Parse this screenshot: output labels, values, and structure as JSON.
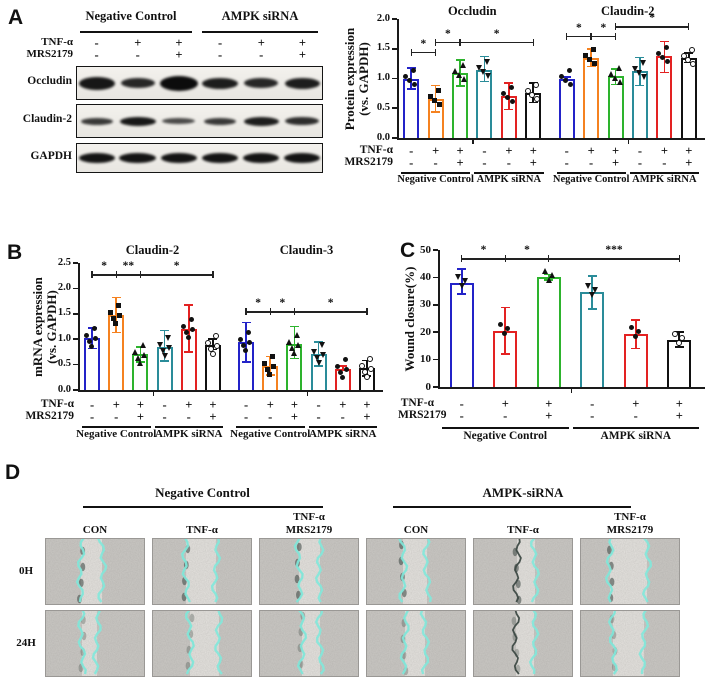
{
  "panel_labels": {
    "A": "A",
    "B": "B",
    "C": "C",
    "D": "D"
  },
  "palette": {
    "blue": "#2323c8",
    "orange": "#f58220",
    "green": "#2db32d",
    "teal": "#2a8c99",
    "red": "#e32222",
    "black": "#111111",
    "cyan_line": "#82e8da",
    "axis": "#1a1a1a"
  },
  "blot": {
    "group_headers": [
      "Negative Control",
      "AMPK siRNA"
    ],
    "treatments": [
      {
        "label": "TNF-α",
        "values": [
          "-",
          "+",
          "+",
          "-",
          "+",
          "+"
        ]
      },
      {
        "label": "MRS2179",
        "values": [
          "-",
          "-",
          "+",
          "-",
          "-",
          "+"
        ]
      }
    ],
    "rows": [
      {
        "label": "Occludin",
        "bands": [
          [
            36,
            13,
            0.95
          ],
          [
            34,
            10,
            0.88
          ],
          [
            38,
            15,
            1.0
          ],
          [
            36,
            11,
            0.92
          ],
          [
            34,
            10,
            0.88
          ],
          [
            35,
            11,
            0.92
          ]
        ]
      },
      {
        "label": "Claudin-2",
        "bands": [
          [
            32,
            7,
            0.8
          ],
          [
            36,
            9,
            0.95
          ],
          [
            33,
            6,
            0.72
          ],
          [
            32,
            7,
            0.8
          ],
          [
            35,
            9,
            0.92
          ],
          [
            34,
            8,
            0.85
          ]
        ]
      },
      {
        "label": "GAPDH",
        "bands": [
          [
            36,
            10,
            0.96
          ],
          [
            37,
            10,
            0.96
          ],
          [
            36,
            10,
            0.96
          ],
          [
            36,
            10,
            0.96
          ],
          [
            36,
            10,
            0.96
          ],
          [
            36,
            10,
            0.96
          ]
        ]
      }
    ]
  },
  "chart_data": [
    {
      "id": "chartA",
      "type": "bar",
      "ylabel_lines": [
        "Protein expression",
        "(vs. GAPDH)"
      ],
      "ylim": [
        0,
        2.0
      ],
      "yticks": [
        "0.0",
        "0.5",
        "1.0",
        "1.5",
        "2.0"
      ],
      "row_labels": [
        "TNF-α",
        "MRS2179"
      ],
      "points_per_bar": 4,
      "subcharts": [
        {
          "title": "Occludin",
          "bars": [
            {
              "value": 1.0,
              "lo": 0.82,
              "hi": 1.18,
              "color": "blue",
              "tnf": "-",
              "mrs": "-",
              "marker": "circle"
            },
            {
              "value": 0.65,
              "lo": 0.44,
              "hi": 0.88,
              "color": "orange",
              "tnf": "+",
              "mrs": "-",
              "marker": "square"
            },
            {
              "value": 1.09,
              "lo": 0.87,
              "hi": 1.31,
              "color": "green",
              "tnf": "+",
              "mrs": "+",
              "marker": "triangle-up"
            },
            {
              "value": 1.15,
              "lo": 0.95,
              "hi": 1.37,
              "color": "teal",
              "tnf": "-",
              "mrs": "-",
              "marker": "triangle-down"
            },
            {
              "value": 0.7,
              "lo": 0.48,
              "hi": 0.92,
              "color": "red",
              "tnf": "+",
              "mrs": "-",
              "marker": "circle"
            },
            {
              "value": 0.76,
              "lo": 0.6,
              "hi": 0.92,
              "color": "black",
              "tnf": "+",
              "mrs": "+",
              "marker": "open-circle"
            }
          ],
          "sig": [
            {
              "a": 0,
              "b": 1,
              "y": 1.45,
              "label": "*"
            },
            {
              "a": 1,
              "b": 2,
              "y": 1.62,
              "label": "*"
            },
            {
              "a": 2,
              "b": 5,
              "y": 1.62,
              "label": "*"
            }
          ],
          "groups": [
            {
              "from": 0,
              "to": 2,
              "label": "Negative Control"
            },
            {
              "from": 3,
              "to": 5,
              "label": "AMPK siRNA"
            }
          ]
        },
        {
          "title": "Claudin-2",
          "bars": [
            {
              "value": 1.0,
              "lo": 0.97,
              "hi": 1.03,
              "color": "blue",
              "tnf": "-",
              "mrs": "-",
              "marker": "circle"
            },
            {
              "value": 1.35,
              "lo": 1.2,
              "hi": 1.5,
              "color": "orange",
              "tnf": "+",
              "mrs": "-",
              "marker": "square"
            },
            {
              "value": 1.05,
              "lo": 0.9,
              "hi": 1.16,
              "color": "green",
              "tnf": "+",
              "mrs": "+",
              "marker": "triangle-up"
            },
            {
              "value": 1.12,
              "lo": 0.88,
              "hi": 1.35,
              "color": "teal",
              "tnf": "-",
              "mrs": "-",
              "marker": "triangle-down"
            },
            {
              "value": 1.38,
              "lo": 1.1,
              "hi": 1.62,
              "color": "red",
              "tnf": "+",
              "mrs": "-",
              "marker": "circle"
            },
            {
              "value": 1.35,
              "lo": 1.27,
              "hi": 1.43,
              "color": "black",
              "tnf": "+",
              "mrs": "+",
              "marker": "open-circle"
            }
          ],
          "sig": [
            {
              "a": 0,
              "b": 1,
              "y": 1.72,
              "label": "*"
            },
            {
              "a": 1,
              "b": 2,
              "y": 1.72,
              "label": "*"
            },
            {
              "a": 2,
              "b": 5,
              "y": 1.88,
              "label": "*"
            }
          ],
          "groups": [
            {
              "from": 0,
              "to": 2,
              "label": "Negative Control"
            },
            {
              "from": 3,
              "to": 5,
              "label": "AMPK siRNA"
            }
          ]
        }
      ]
    },
    {
      "id": "chartB",
      "type": "bar",
      "ylabel_lines": [
        "mRNA expression",
        "(vs. GAPDH)"
      ],
      "ylim": [
        0,
        2.5
      ],
      "yticks": [
        "0.0",
        "0.5",
        "1.0",
        "1.5",
        "2.0",
        "2.5"
      ],
      "row_labels": [
        "TNF-α",
        "MRS2179"
      ],
      "points_per_bar": 5,
      "subcharts": [
        {
          "title": "Claudin-2",
          "bars": [
            {
              "value": 1.02,
              "lo": 0.82,
              "hi": 1.22,
              "color": "blue",
              "tnf": "-",
              "mrs": "-",
              "marker": "circle"
            },
            {
              "value": 1.47,
              "lo": 1.13,
              "hi": 1.82,
              "color": "orange",
              "tnf": "+",
              "mrs": "-",
              "marker": "square"
            },
            {
              "value": 0.7,
              "lo": 0.55,
              "hi": 0.85,
              "color": "green",
              "tnf": "+",
              "mrs": "+",
              "marker": "triangle-up"
            },
            {
              "value": 0.85,
              "lo": 0.57,
              "hi": 1.17,
              "color": "teal",
              "tnf": "-",
              "mrs": "-",
              "marker": "triangle-down"
            },
            {
              "value": 1.2,
              "lo": 0.75,
              "hi": 1.67,
              "color": "red",
              "tnf": "+",
              "mrs": "-",
              "marker": "circle"
            },
            {
              "value": 0.88,
              "lo": 0.8,
              "hi": 1.0,
              "color": "black",
              "tnf": "+",
              "mrs": "+",
              "marker": "open-circle"
            }
          ],
          "sig": [
            {
              "a": 0,
              "b": 1,
              "y": 2.28,
              "label": "*"
            },
            {
              "a": 1,
              "b": 2,
              "y": 2.28,
              "label": "**"
            },
            {
              "a": 2,
              "b": 5,
              "y": 2.28,
              "label": "*"
            }
          ],
          "groups": [
            {
              "from": 0,
              "to": 2,
              "label": "Negative Control"
            },
            {
              "from": 3,
              "to": 5,
              "label": "AMPK siRNA"
            }
          ]
        },
        {
          "title": "Claudin-3",
          "bars": [
            {
              "value": 0.95,
              "lo": 0.55,
              "hi": 1.33,
              "color": "blue",
              "tnf": "-",
              "mrs": "-",
              "marker": "circle"
            },
            {
              "value": 0.48,
              "lo": 0.3,
              "hi": 0.66,
              "color": "orange",
              "tnf": "+",
              "mrs": "-",
              "marker": "square"
            },
            {
              "value": 0.9,
              "lo": 0.62,
              "hi": 1.25,
              "color": "green",
              "tnf": "+",
              "mrs": "+",
              "marker": "triangle-up"
            },
            {
              "value": 0.7,
              "lo": 0.47,
              "hi": 0.95,
              "color": "teal",
              "tnf": "-",
              "mrs": "-",
              "marker": "triangle-down"
            },
            {
              "value": 0.42,
              "lo": 0.38,
              "hi": 0.47,
              "color": "red",
              "tnf": "+",
              "mrs": "-",
              "marker": "circle"
            },
            {
              "value": 0.43,
              "lo": 0.28,
              "hi": 0.58,
              "color": "black",
              "tnf": "+",
              "mrs": "+",
              "marker": "open-circle"
            }
          ],
          "sig": [
            {
              "a": 0,
              "b": 1,
              "y": 1.55,
              "label": "*"
            },
            {
              "a": 1,
              "b": 2,
              "y": 1.55,
              "label": "*"
            },
            {
              "a": 2,
              "b": 5,
              "y": 1.55,
              "label": "*"
            }
          ],
          "groups": [
            {
              "from": 0,
              "to": 2,
              "label": "Negative Control"
            },
            {
              "from": 3,
              "to": 5,
              "label": "AMPK siRNA"
            }
          ]
        }
      ]
    },
    {
      "id": "chartC",
      "type": "bar",
      "ylabel_lines": [
        "Wound closure(%)"
      ],
      "ylim": [
        0,
        50
      ],
      "yticks": [
        "0",
        "10",
        "20",
        "30",
        "40",
        "50"
      ],
      "row_labels": [
        "TNF-α",
        "MRS2179"
      ],
      "points_per_bar": 3,
      "subcharts": [
        {
          "title": "",
          "bars": [
            {
              "value": 38,
              "lo": 34,
              "hi": 43,
              "color": "blue",
              "tnf": "-",
              "mrs": "-",
              "marker": "triangle-down"
            },
            {
              "value": 20.5,
              "lo": 12,
              "hi": 29,
              "color": "red",
              "tnf": "+",
              "mrs": "-",
              "marker": "circle"
            },
            {
              "value": 40,
              "lo": 39,
              "hi": 41,
              "color": "green",
              "tnf": "+",
              "mrs": "+",
              "marker": "triangle-up"
            },
            {
              "value": 34.5,
              "lo": 28.5,
              "hi": 40.5,
              "color": "teal",
              "tnf": "-",
              "mrs": "-",
              "marker": "triangle-down"
            },
            {
              "value": 19.5,
              "lo": 14,
              "hi": 24.5,
              "color": "red",
              "tnf": "+",
              "mrs": "-",
              "marker": "circle"
            },
            {
              "value": 17,
              "lo": 14.5,
              "hi": 20,
              "color": "black",
              "tnf": "+",
              "mrs": "+",
              "marker": "open-circle"
            }
          ],
          "sig": [
            {
              "a": 0,
              "b": 1,
              "y": 47,
              "label": "*"
            },
            {
              "a": 1,
              "b": 2,
              "y": 47,
              "label": "*"
            },
            {
              "a": 2,
              "b": 5,
              "y": 47,
              "label": "***"
            }
          ],
          "groups": [
            {
              "from": 0,
              "to": 2,
              "label": "Negative Control"
            },
            {
              "from": 3,
              "to": 5,
              "label": "AMPK siRNA"
            }
          ]
        }
      ]
    }
  ],
  "panelD": {
    "groups": [
      {
        "title": "Negative Control",
        "col_labels": [
          [
            "CON"
          ],
          [
            "TNF-α"
          ],
          [
            "TNF-α",
            "MRS2179"
          ]
        ]
      },
      {
        "title": "AMPK-siRNA",
        "col_labels": [
          [
            "CON"
          ],
          [
            "TNF-α"
          ],
          [
            "TNF-α",
            "MRS2179"
          ]
        ]
      }
    ],
    "row_labels": [
      "0H",
      "24H"
    ],
    "cells": [
      [
        {
          "l": 36,
          "r": 57
        },
        {
          "l": 34,
          "r": 64
        },
        {
          "l": 40,
          "r": 61
        },
        {
          "l": 37,
          "r": 61
        },
        {
          "l": 44,
          "r": 62,
          "darkLeft": true
        },
        {
          "l": 30,
          "r": 67
        }
      ],
      [
        {
          "l": 37,
          "r": 52
        },
        {
          "l": 38,
          "r": 67
        },
        {
          "l": 43,
          "r": 61
        },
        {
          "l": 39,
          "r": 59
        },
        {
          "l": 43,
          "r": 61,
          "darkLeft": true
        },
        {
          "l": 33,
          "r": 64
        }
      ]
    ]
  }
}
